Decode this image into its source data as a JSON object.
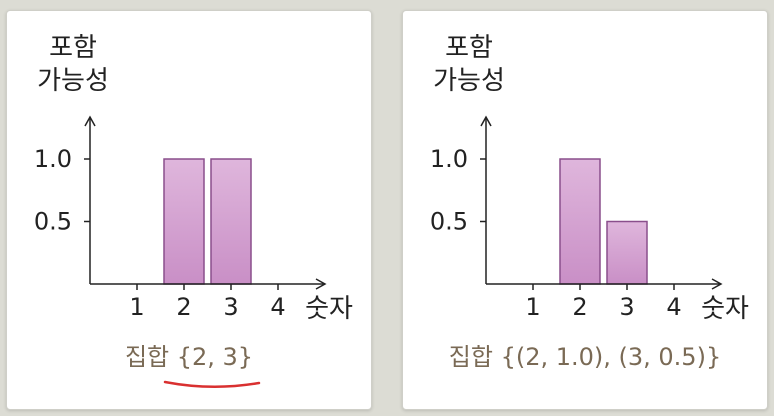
{
  "colors": {
    "bar_fill": "#d9a8d6",
    "bar_stroke": "#8a4f8c",
    "axis": "#222222",
    "caption_text": "#7a6a55",
    "underline": "#d93030"
  },
  "chart_data": [
    {
      "type": "bar",
      "ylabel_lines": [
        "포함",
        "가능성"
      ],
      "xlabel": "숫자",
      "categories": [
        "1",
        "2",
        "3",
        "4"
      ],
      "values": [
        0,
        1.0,
        1.0,
        0
      ],
      "yticks": [
        "0.5",
        "1.0"
      ],
      "ytick_values": [
        0.5,
        1.0
      ],
      "ylim": [
        0,
        1.0
      ],
      "caption": "집합 {2, 3}",
      "caption_underlined": true
    },
    {
      "type": "bar",
      "ylabel_lines": [
        "포함",
        "가능성"
      ],
      "xlabel": "숫자",
      "categories": [
        "1",
        "2",
        "3",
        "4"
      ],
      "values": [
        0,
        1.0,
        0.5,
        0
      ],
      "yticks": [
        "0.5",
        "1.0"
      ],
      "ytick_values": [
        0.5,
        1.0
      ],
      "ylim": [
        0,
        1.0
      ],
      "caption": "집합 {(2, 1.0), (3, 0.5)}",
      "caption_underlined": false
    }
  ]
}
